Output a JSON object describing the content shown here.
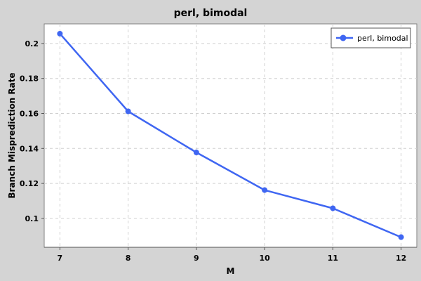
{
  "chart_data": {
    "type": "line",
    "title": "perl, bimodal",
    "xlabel": "M",
    "ylabel": "Branch Misprediction Rate",
    "x": [
      7,
      8,
      9,
      10,
      11,
      12
    ],
    "series": [
      {
        "name": "perl, bimodal",
        "values": [
          0.2056,
          0.1612,
          0.1377,
          0.1162,
          0.1058,
          0.0893
        ],
        "color": "#3f66f2"
      }
    ],
    "xlim": [
      6.77,
      12.23
    ],
    "ylim": [
      0.0835,
      0.2112
    ],
    "x_ticks": [
      "7",
      "8",
      "9",
      "10",
      "11",
      "12"
    ],
    "y_ticks": [
      "0.1",
      "0.12",
      "0.14",
      "0.16",
      "0.18",
      "0.2"
    ],
    "y_tick_values": [
      0.1,
      0.12,
      0.14,
      0.16,
      0.18,
      0.2
    ],
    "grid": true,
    "legend_position": "top-right",
    "colors": {
      "background": "#d4d4d4",
      "plot_background": "#ffffff",
      "grid": "#d0d0d0",
      "axis": "#808080"
    }
  }
}
